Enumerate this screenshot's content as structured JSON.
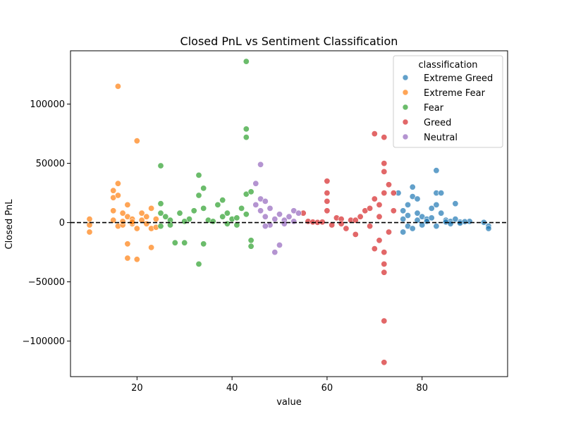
{
  "chart_data": {
    "type": "scatter",
    "title": "Closed PnL vs Sentiment Classification",
    "xlabel": "value",
    "ylabel": "Closed PnL",
    "xlim": [
      6,
      98
    ],
    "ylim": [
      -130000,
      145000
    ],
    "x_ticks": [
      20,
      40,
      60,
      80
    ],
    "y_ticks": [
      -100000,
      -50000,
      0,
      50000,
      100000
    ],
    "y_tick_labels": [
      "−100000",
      "−50000",
      "0",
      "50000",
      "100000"
    ],
    "reference_line": {
      "y": 0,
      "style": "dashed",
      "color": "#000000"
    },
    "grid": false,
    "legend": {
      "title": "classification",
      "position": "top-right",
      "entries": [
        "Extreme Greed",
        "Extreme Fear",
        "Fear",
        "Greed",
        "Neutral"
      ]
    },
    "series": [
      {
        "name": "Extreme Greed",
        "color": "#1f77b4",
        "points": [
          [
            75,
            25000
          ],
          [
            76,
            -8000
          ],
          [
            76,
            10000
          ],
          [
            77,
            15000
          ],
          [
            77,
            -3000
          ],
          [
            78,
            22000
          ],
          [
            78,
            30000
          ],
          [
            78,
            -5000
          ],
          [
            79,
            20000
          ],
          [
            79,
            8000
          ],
          [
            80,
            5000
          ],
          [
            80,
            -2000
          ],
          [
            81,
            3000
          ],
          [
            81,
            1000
          ],
          [
            82,
            12000
          ],
          [
            83,
            44000
          ],
          [
            83,
            25000
          ],
          [
            83,
            15000
          ],
          [
            83,
            -3000
          ],
          [
            84,
            25000
          ],
          [
            84,
            8000
          ],
          [
            85,
            2000
          ],
          [
            86,
            1000
          ],
          [
            87,
            16000
          ],
          [
            87,
            3000
          ],
          [
            88,
            500
          ],
          [
            90,
            1000
          ],
          [
            93,
            200
          ],
          [
            94,
            -3000
          ],
          [
            94,
            -5000
          ],
          [
            76,
            3000
          ],
          [
            77,
            6000
          ],
          [
            79,
            2000
          ],
          [
            82,
            4000
          ],
          [
            85,
            500
          ],
          [
            86,
            -1000
          ],
          [
            88,
            -500
          ],
          [
            89,
            800
          ]
        ]
      },
      {
        "name": "Extreme Fear",
        "color": "#ff7f0e",
        "points": [
          [
            10,
            3000
          ],
          [
            10,
            -8000
          ],
          [
            10,
            -2000
          ],
          [
            15,
            27000
          ],
          [
            15,
            21000
          ],
          [
            15,
            10000
          ],
          [
            15,
            2000
          ],
          [
            16,
            115000
          ],
          [
            16,
            33000
          ],
          [
            16,
            23000
          ],
          [
            16,
            -3000
          ],
          [
            17,
            8000
          ],
          [
            17,
            -2000
          ],
          [
            18,
            15000
          ],
          [
            18,
            5000
          ],
          [
            18,
            -18000
          ],
          [
            18,
            -30000
          ],
          [
            19,
            3000
          ],
          [
            19,
            -1000
          ],
          [
            20,
            69000
          ],
          [
            20,
            -31000
          ],
          [
            20,
            -5000
          ],
          [
            21,
            8000
          ],
          [
            21,
            2000
          ],
          [
            22,
            5000
          ],
          [
            23,
            12000
          ],
          [
            23,
            -5000
          ],
          [
            23,
            -21000
          ],
          [
            24,
            3000
          ],
          [
            24,
            -4000
          ],
          [
            17,
            1000
          ],
          [
            19,
            500
          ],
          [
            22,
            -1000
          ]
        ]
      },
      {
        "name": "Fear",
        "color": "#2ca02c",
        "points": [
          [
            25,
            48000
          ],
          [
            25,
            16000
          ],
          [
            25,
            8000
          ],
          [
            25,
            -3000
          ],
          [
            26,
            5000
          ],
          [
            27,
            2000
          ],
          [
            28,
            -17000
          ],
          [
            29,
            8000
          ],
          [
            30,
            -17000
          ],
          [
            31,
            3000
          ],
          [
            32,
            10000
          ],
          [
            33,
            40000
          ],
          [
            33,
            23000
          ],
          [
            33,
            -35000
          ],
          [
            34,
            29000
          ],
          [
            34,
            12000
          ],
          [
            34,
            -18000
          ],
          [
            35,
            2000
          ],
          [
            37,
            15000
          ],
          [
            38,
            19000
          ],
          [
            38,
            5000
          ],
          [
            39,
            8000
          ],
          [
            40,
            3000
          ],
          [
            41,
            -2000
          ],
          [
            42,
            12000
          ],
          [
            43,
            136000
          ],
          [
            43,
            79000
          ],
          [
            43,
            72000
          ],
          [
            43,
            24000
          ],
          [
            43,
            7000
          ],
          [
            44,
            26000
          ],
          [
            44,
            -15000
          ],
          [
            44,
            -20000
          ],
          [
            36,
            1000
          ],
          [
            39,
            -1000
          ],
          [
            41,
            4000
          ],
          [
            27,
            -2000
          ],
          [
            30,
            1000
          ]
        ]
      },
      {
        "name": "Greed",
        "color": "#d62728",
        "points": [
          [
            55,
            8000
          ],
          [
            56,
            1000
          ],
          [
            57,
            500
          ],
          [
            58,
            200
          ],
          [
            60,
            35000
          ],
          [
            60,
            25000
          ],
          [
            60,
            18000
          ],
          [
            60,
            10000
          ],
          [
            61,
            -2000
          ],
          [
            62,
            4000
          ],
          [
            63,
            3000
          ],
          [
            64,
            -5000
          ],
          [
            65,
            2000
          ],
          [
            66,
            -10000
          ],
          [
            67,
            5000
          ],
          [
            68,
            10000
          ],
          [
            69,
            12000
          ],
          [
            70,
            75000
          ],
          [
            70,
            20000
          ],
          [
            70,
            -22000
          ],
          [
            71,
            15000
          ],
          [
            71,
            -15000
          ],
          [
            72,
            72000
          ],
          [
            72,
            50000
          ],
          [
            72,
            43000
          ],
          [
            72,
            25000
          ],
          [
            72,
            -25000
          ],
          [
            72,
            -35000
          ],
          [
            72,
            -42000
          ],
          [
            72,
            -83000
          ],
          [
            72,
            -118000
          ],
          [
            73,
            32000
          ],
          [
            73,
            -8000
          ],
          [
            74,
            25000
          ],
          [
            74,
            10000
          ],
          [
            59,
            500
          ],
          [
            63,
            -1000
          ],
          [
            66,
            2000
          ],
          [
            69,
            -3000
          ],
          [
            71,
            5000
          ]
        ]
      },
      {
        "name": "Neutral",
        "color": "#9467bd",
        "points": [
          [
            45,
            33000
          ],
          [
            45,
            15000
          ],
          [
            46,
            49000
          ],
          [
            46,
            20000
          ],
          [
            46,
            10000
          ],
          [
            47,
            18000
          ],
          [
            47,
            5000
          ],
          [
            48,
            12000
          ],
          [
            49,
            -25000
          ],
          [
            49,
            3000
          ],
          [
            50,
            7000
          ],
          [
            50,
            -19000
          ],
          [
            51,
            2000
          ],
          [
            52,
            5000
          ],
          [
            53,
            10000
          ],
          [
            54,
            8000
          ],
          [
            48,
            -2000
          ],
          [
            51,
            -1000
          ],
          [
            53,
            1000
          ],
          [
            47,
            -3000
          ]
        ]
      }
    ]
  }
}
